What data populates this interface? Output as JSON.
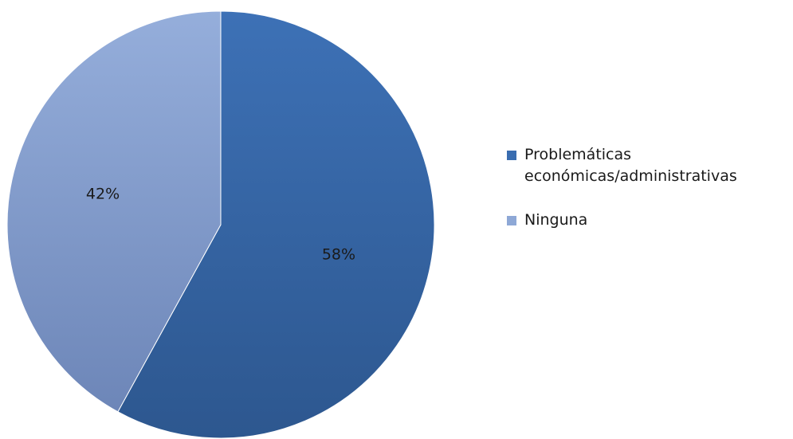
{
  "chart_data": {
    "type": "pie",
    "title": "",
    "categories": [
      "Problemáticas económicas/administrativas",
      "Ninguna"
    ],
    "values": [
      58,
      42
    ],
    "value_labels": [
      "58%",
      "42%"
    ],
    "colors": [
      "#3a6db0",
      "#8ea8d6"
    ],
    "legend_position": "right"
  },
  "legend": {
    "items": [
      {
        "label": "Problemáticas económicas/administrativas",
        "color": "#3a6db0"
      },
      {
        "label": "Ninguna",
        "color": "#8ea8d6"
      }
    ]
  }
}
